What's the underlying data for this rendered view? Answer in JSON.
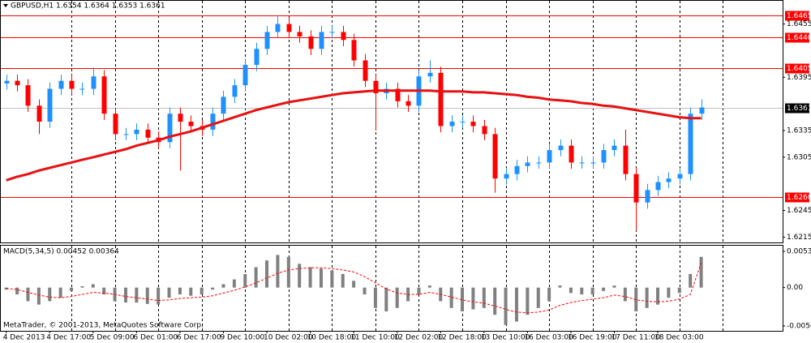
{
  "chart_data": [
    {
      "type": "candlestick",
      "title": "GBPUSD,H1  1.6354 1.6364 1.6353 1.6361",
      "up_color": "#1e90ff",
      "down_color": "#ff0000",
      "ma_color": "#e81010",
      "level_color": "#ff0000",
      "ylim": [
        1.6209,
        1.6482
      ],
      "yticks": [
        1.6455,
        1.6395,
        1.6335,
        1.6305,
        1.6245,
        1.6215
      ],
      "levels": [
        1.6465,
        {
          "value": 1.644,
          "label": "1.6440"
        },
        1.6405,
        {
          "value": 1.626,
          "label": "1.6260"
        }
      ],
      "price_line": 1.6361,
      "open": [
        1.6388,
        1.6391,
        1.6386,
        1.6363,
        1.6345,
        1.6382,
        1.6391,
        1.6382,
        1.6382,
        1.6396,
        1.6354,
        1.6331,
        1.6331,
        1.6336,
        1.6327,
        1.6322,
        1.6354,
        1.6345,
        1.634,
        1.6336,
        1.6354,
        1.6373,
        1.6386,
        1.6409,
        1.6427,
        1.6446,
        1.6455,
        1.6446,
        1.6441,
        1.6427,
        1.6446,
        1.6446,
        1.6437,
        1.6414,
        1.6391,
        1.6377,
        1.6382,
        1.6368,
        1.6363,
        1.6396,
        1.64,
        1.634,
        1.6345,
        1.6345,
        1.634,
        1.6331,
        1.6281,
        1.6286,
        1.6295,
        1.6299,
        1.6299,
        1.6313,
        1.6318,
        1.6299,
        1.6299,
        1.6299,
        1.6313,
        1.6318,
        1.6286,
        1.6254,
        1.6268,
        1.6277,
        1.6281,
        1.6286,
        1.6354
      ],
      "high": [
        1.6398,
        1.6398,
        1.6393,
        1.637,
        1.6389,
        1.6398,
        1.6398,
        1.6389,
        1.6406,
        1.6403,
        1.6361,
        1.6338,
        1.6343,
        1.6343,
        1.6334,
        1.6361,
        1.6361,
        1.6352,
        1.6347,
        1.6361,
        1.638,
        1.6393,
        1.6416,
        1.6434,
        1.6453,
        1.6464,
        1.6462,
        1.6453,
        1.6448,
        1.6453,
        1.6453,
        1.6453,
        1.6444,
        1.6421,
        1.6398,
        1.6389,
        1.6389,
        1.6375,
        1.6403,
        1.6414,
        1.6407,
        1.6352,
        1.6352,
        1.6352,
        1.6347,
        1.6338,
        1.6293,
        1.6302,
        1.6306,
        1.6306,
        1.632,
        1.6325,
        1.6325,
        1.6306,
        1.6306,
        1.632,
        1.6325,
        1.6336,
        1.6293,
        1.6275,
        1.6284,
        1.6288,
        1.6293,
        1.6361,
        1.637
      ],
      "low": [
        1.6381,
        1.6379,
        1.6356,
        1.6331,
        1.6338,
        1.6375,
        1.6375,
        1.6375,
        1.6375,
        1.6347,
        1.6324,
        1.6324,
        1.6324,
        1.632,
        1.6315,
        1.6315,
        1.629,
        1.6333,
        1.6329,
        1.6329,
        1.6347,
        1.6366,
        1.6379,
        1.6402,
        1.642,
        1.6439,
        1.6439,
        1.6434,
        1.642,
        1.642,
        1.6439,
        1.643,
        1.6407,
        1.6384,
        1.6335,
        1.637,
        1.6361,
        1.6356,
        1.6356,
        1.6389,
        1.6333,
        1.6333,
        1.6338,
        1.6333,
        1.6324,
        1.6265,
        1.6274,
        1.6279,
        1.6288,
        1.6292,
        1.6292,
        1.6306,
        1.6292,
        1.6292,
        1.6292,
        1.6292,
        1.6306,
        1.6279,
        1.6222,
        1.6247,
        1.6261,
        1.627,
        1.6274,
        1.6279,
        1.6347
      ],
      "close": [
        1.6391,
        1.6386,
        1.6363,
        1.6345,
        1.6382,
        1.6391,
        1.6382,
        1.6382,
        1.6396,
        1.6354,
        1.6331,
        1.6331,
        1.6336,
        1.6327,
        1.6322,
        1.6354,
        1.6345,
        1.634,
        1.6336,
        1.6354,
        1.6373,
        1.6386,
        1.6409,
        1.6427,
        1.6446,
        1.6455,
        1.6446,
        1.6441,
        1.6427,
        1.6446,
        1.6446,
        1.6437,
        1.6414,
        1.6391,
        1.6377,
        1.6382,
        1.6368,
        1.6363,
        1.6396,
        1.64,
        1.634,
        1.6345,
        1.6345,
        1.634,
        1.6331,
        1.6281,
        1.6286,
        1.6295,
        1.6299,
        1.6299,
        1.6313,
        1.6318,
        1.6299,
        1.6299,
        1.6299,
        1.6313,
        1.6318,
        1.6286,
        1.6254,
        1.6268,
        1.6277,
        1.6281,
        1.6286,
        1.6354,
        1.6361
      ],
      "ma": [
        1.6279,
        1.6283,
        1.6286,
        1.629,
        1.6293,
        1.6296,
        1.6299,
        1.6302,
        1.6305,
        1.6308,
        1.6311,
        1.6314,
        1.6318,
        1.6321,
        1.6324,
        1.6328,
        1.6331,
        1.6334,
        1.6338,
        1.6342,
        1.6346,
        1.635,
        1.6354,
        1.6358,
        1.6361,
        1.6364,
        1.6367,
        1.6369,
        1.6371,
        1.6373,
        1.6375,
        1.6377,
        1.6378,
        1.6379,
        1.638,
        1.638,
        1.638,
        1.638,
        1.638,
        1.638,
        1.6379,
        1.6379,
        1.6379,
        1.6378,
        1.6378,
        1.6377,
        1.6376,
        1.6375,
        1.6373,
        1.6372,
        1.637,
        1.6369,
        1.6368,
        1.6366,
        1.6365,
        1.6363,
        1.6362,
        1.636,
        1.6358,
        1.6356,
        1.6354,
        1.6352,
        1.635,
        1.6349,
        1.6349
      ]
    },
    {
      "type": "macd",
      "title": "MACD(5,34,5) 0.00452 0.00364",
      "annotation": "MetaTrader, © 2001-2013, MetaQuotes Software Corp.",
      "ylim": [
        -0.00636,
        0.00628
      ],
      "yticks": [
        0.00533,
        {
          "value": 0,
          "label": "0.00"
        },
        -0.00564
      ],
      "xlim": [
        -0.5,
        71.5
      ],
      "xticks": [
        {
          "value": 0,
          "label": "4 Dec 2013"
        },
        {
          "value": 4,
          "label": "4 Dec 17:00"
        },
        {
          "value": 8,
          "label": "5 Dec 09:00"
        },
        {
          "value": 12,
          "label": "6 Dec 01:00"
        },
        {
          "value": 16,
          "label": "6 Dec 17:00"
        },
        {
          "value": 20,
          "label": "9 Dec 10:00"
        },
        {
          "value": 24,
          "label": "10 Dec 02:00"
        },
        {
          "value": 28,
          "label": "10 Dec 18:00"
        },
        {
          "value": 32,
          "label": "11 Dec 10:00"
        },
        {
          "value": 36,
          "label": "12 Dec 02:00"
        },
        {
          "value": 40,
          "label": "12 Dec 18:00"
        },
        {
          "value": 44,
          "label": "13 Dec 10:00"
        },
        {
          "value": 48,
          "label": "16 Dec 03:00"
        },
        {
          "value": 52,
          "label": "16 Dec 19:00"
        },
        {
          "value": 56,
          "label": "17 Dec 11:00"
        },
        {
          "value": 60,
          "label": "18 Dec 03:00"
        }
      ],
      "xgrid": [
        6,
        10,
        14,
        18,
        22,
        26,
        30,
        34,
        38,
        42,
        46,
        50,
        54,
        58,
        62,
        66
      ],
      "series": [
        {
          "type": "bar",
          "color": "#808080",
          "values": [
            -0.0003,
            -0.001,
            -0.002,
            -0.0025,
            -0.002,
            -0.0015,
            -0.0005,
            0.0002,
            0.0005,
            -0.001,
            -0.002,
            -0.0022,
            -0.0022,
            -0.0024,
            -0.0025,
            -0.0015,
            -0.001,
            -0.0012,
            -0.001,
            -0.0003,
            0.0005,
            0.0012,
            0.002,
            0.003,
            0.004,
            0.0048,
            0.0045,
            0.0035,
            0.003,
            0.0028,
            0.0025,
            0.002,
            0.001,
            -0.001,
            -0.003,
            -0.0035,
            -0.003,
            -0.002,
            -0.001,
            0.0003,
            -0.002,
            -0.003,
            -0.0035,
            -0.0032,
            -0.003,
            -0.004,
            -0.0055,
            -0.005,
            -0.004,
            -0.003,
            -0.002,
            0.0003,
            -0.0008,
            -0.001,
            -0.001,
            -0.0005,
            0.0003,
            -0.002,
            -0.0035,
            -0.003,
            -0.0025,
            -0.0015,
            -0.0008,
            0.002,
            0.00452
          ]
        },
        {
          "type": "line",
          "color": "#ff0000",
          "values": [
            -0.0001,
            -0.0003,
            -0.0007,
            -0.0011,
            -0.0014,
            -0.0015,
            -0.0013,
            -0.001,
            -0.0007,
            -0.0008,
            -0.001,
            -0.0013,
            -0.0015,
            -0.0017,
            -0.0019,
            -0.0018,
            -0.0016,
            -0.0015,
            -0.0014,
            -0.0012,
            -0.0008,
            -0.0004,
            0.0001,
            0.0007,
            0.0014,
            0.0021,
            0.0026,
            0.0028,
            0.0029,
            0.0029,
            0.0028,
            0.0026,
            0.0023,
            0.0016,
            0.0007,
            -0.0002,
            -0.0008,
            -0.001,
            -0.001,
            -0.0007,
            -0.001,
            -0.0014,
            -0.0018,
            -0.0021,
            -0.0023,
            -0.0027,
            -0.0032,
            -0.0036,
            -0.0037,
            -0.0036,
            -0.0033,
            -0.0026,
            -0.0022,
            -0.0019,
            -0.0017,
            -0.0015,
            -0.0011,
            -0.0013,
            -0.0018,
            -0.002,
            -0.0021,
            -0.002,
            -0.0017,
            -0.001,
            0.00364
          ]
        }
      ]
    }
  ]
}
